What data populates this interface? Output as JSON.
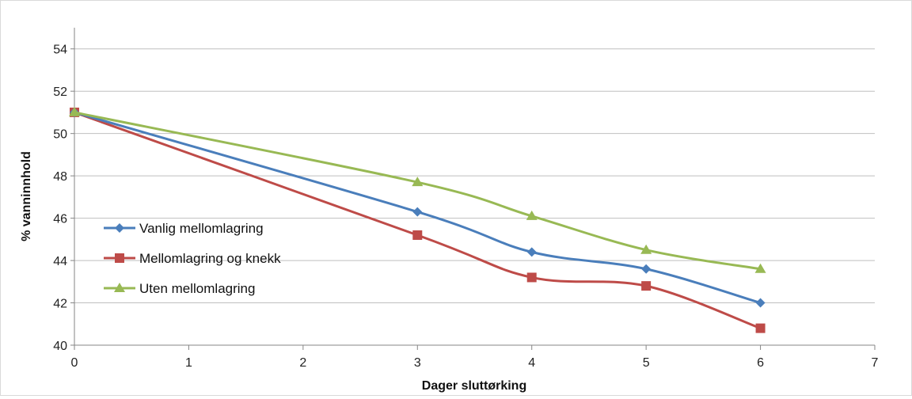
{
  "chart_data": {
    "type": "line",
    "xlabel": "Dager sluttørking",
    "ylabel": "% vanninnhold",
    "xlim": [
      0,
      7
    ],
    "ylim": [
      40,
      55
    ],
    "x_ticks": [
      0,
      1,
      2,
      3,
      4,
      5,
      6,
      7
    ],
    "y_ticks": [
      40,
      42,
      44,
      46,
      48,
      50,
      52,
      54
    ],
    "grid": "horizontal",
    "legend_position": "left-middle",
    "series": [
      {
        "name": "Vanlig mellomlagring",
        "color": "#4a7ebb",
        "marker": "diamond",
        "x": [
          0,
          3,
          4,
          5,
          6
        ],
        "y": [
          51.0,
          46.3,
          44.4,
          43.6,
          42.0
        ]
      },
      {
        "name": "Mellomlagring og knekk",
        "color": "#be4b48",
        "marker": "square",
        "x": [
          0,
          3,
          4,
          5,
          6
        ],
        "y": [
          51.0,
          45.2,
          43.2,
          42.8,
          40.8
        ]
      },
      {
        "name": "Uten mellomlagring",
        "color": "#98b954",
        "marker": "triangle",
        "x": [
          0,
          3,
          4,
          5,
          6
        ],
        "y": [
          51.0,
          47.7,
          46.1,
          44.5,
          43.6
        ]
      }
    ]
  }
}
